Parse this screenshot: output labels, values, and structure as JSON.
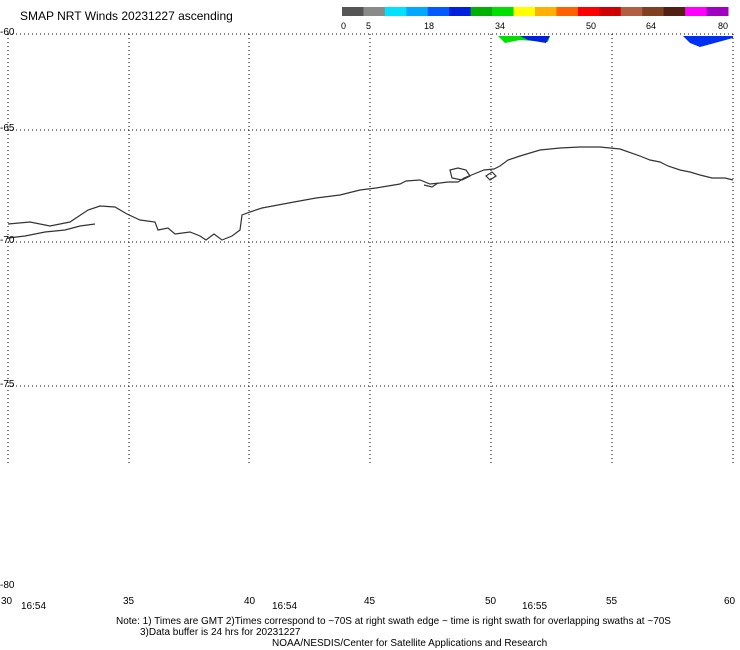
{
  "title": "SMAP NRT Winds 20231227 ascending",
  "colorbar": {
    "ticks": [
      "0",
      "5",
      "18",
      "34",
      "50",
      "64",
      "80"
    ],
    "colors": [
      "#555555",
      "#8a8a8a",
      "#00e0ff",
      "#00a8ff",
      "#005aff",
      "#0020e0",
      "#00b000",
      "#00e000",
      "#ffff00",
      "#ffb000",
      "#ff6000",
      "#ff0000",
      "#d00000",
      "#b06040",
      "#804020",
      "#502010",
      "#ff00ff",
      "#a000c0"
    ]
  },
  "map": {
    "lat_labels": [
      "-60",
      "-65",
      "-70",
      "-75",
      "-80"
    ],
    "lon_labels": [
      "30",
      "35",
      "40",
      "45",
      "50",
      "55",
      "60"
    ],
    "swath_times": [
      "16:54",
      "16:54",
      "16:55"
    ]
  },
  "notes": {
    "line1": "Note: 1) Times are GMT 2)Times correspond to ~70S at right swath edge ~ time is right swath for overlapping swaths at ~70S",
    "line2": "3)Data buffer is 24 hrs for 20231227",
    "line3": "NOAA/NESDIS/Center for Satellite Applications and Research"
  }
}
